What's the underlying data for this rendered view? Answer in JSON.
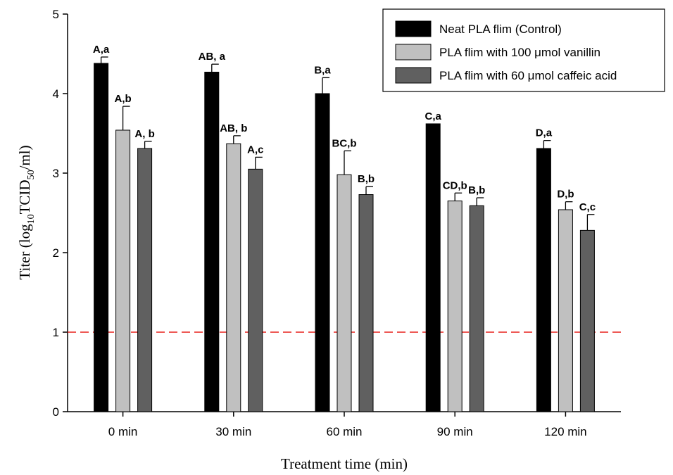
{
  "chart_data": {
    "type": "bar",
    "categories": [
      "0 min",
      "30 min",
      "60 min",
      "90 min",
      "120 min"
    ],
    "xlabel": "Treatment time (min)",
    "ylabel": {
      "prefix": "Titer (log",
      "sub1": "10",
      "mid": "TCID",
      "sub2": "50",
      "suffix": "/ml)"
    },
    "ylim": [
      0,
      5
    ],
    "yticks": [
      "0",
      "1",
      "2",
      "3",
      "4",
      "5"
    ],
    "grid": false,
    "legend_position": "top-right",
    "reference_line": {
      "y": 1,
      "color": "#e8231f",
      "style": "dashed"
    },
    "series": [
      {
        "name": "Neat PLA flim (Control)",
        "color": "#000000",
        "values": [
          4.38,
          4.27,
          4.0,
          3.62,
          3.31
        ],
        "errors": [
          0.08,
          0.1,
          0.2,
          0.0,
          0.1
        ],
        "labels": [
          "A,a",
          "AB, a",
          "B,a",
          "C,a",
          "D,a"
        ]
      },
      {
        "name": "PLA flim with 100 μmol vanillin",
        "color": "#c0c0c0",
        "values": [
          3.54,
          3.37,
          2.98,
          2.65,
          2.54
        ],
        "errors": [
          0.3,
          0.1,
          0.3,
          0.1,
          0.1
        ],
        "labels": [
          "A,b",
          "AB, b",
          "BC,b",
          "CD,b",
          "D,b"
        ]
      },
      {
        "name": "PLA flim with 60 μmol caffeic acid",
        "color": "#606060",
        "values": [
          3.31,
          3.05,
          2.73,
          2.59,
          2.28
        ],
        "errors": [
          0.09,
          0.15,
          0.1,
          0.1,
          0.2
        ],
        "labels": [
          "A, b",
          "A,c",
          "B,b",
          "B,b",
          "C,c"
        ]
      }
    ]
  }
}
